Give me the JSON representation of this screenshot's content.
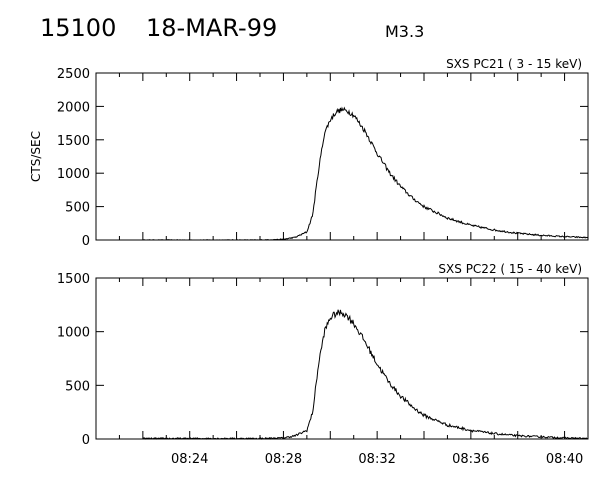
{
  "header": {
    "event_id": "15100",
    "date": "18-MAR-99",
    "flare_class": "M3.3"
  },
  "chart_data": [
    {
      "type": "line",
      "title": "SXS PC21  (  3 - 15 keV)",
      "xlabel": "",
      "ylabel": "CTS/SEC",
      "xlim": [
        "08:20:00",
        "08:41:00"
      ],
      "ylim": [
        0,
        2500
      ],
      "yticks": [
        0,
        500,
        1000,
        1500,
        2000,
        2500
      ],
      "xticks": [
        "08:24",
        "08:28",
        "08:32",
        "08:36",
        "08:40"
      ],
      "x_tick_labels_shown": false,
      "grid": false,
      "series": [
        {
          "x": [
            "08:22:00",
            "08:24:00",
            "08:26:00",
            "08:27:00",
            "08:28:00",
            "08:28:30",
            "08:29:00",
            "08:29:15",
            "08:29:30",
            "08:29:45",
            "08:30:00",
            "08:30:15",
            "08:30:30",
            "08:30:45",
            "08:31:00",
            "08:31:30",
            "08:32:00",
            "08:32:30",
            "08:33:00",
            "08:33:30",
            "08:34:00",
            "08:35:00",
            "08:36:00",
            "08:37:00",
            "08:38:00",
            "08:39:00",
            "08:40:00",
            "08:41:00"
          ],
          "y": [
            0,
            0,
            0,
            0,
            10,
            40,
            120,
            380,
            1050,
            1600,
            1800,
            1920,
            1950,
            1930,
            1870,
            1620,
            1300,
            1020,
            800,
            630,
            500,
            330,
            220,
            150,
            100,
            70,
            50,
            35
          ]
        }
      ]
    },
    {
      "type": "line",
      "title": "SXS PC22  ( 15 - 40 keV)",
      "xlabel": "",
      "ylabel": "",
      "xlim": [
        "08:20:00",
        "08:41:00"
      ],
      "ylim": [
        0,
        1500
      ],
      "yticks": [
        0,
        500,
        1000,
        1500
      ],
      "xticks": [
        "08:24",
        "08:28",
        "08:32",
        "08:36",
        "08:40"
      ],
      "x_tick_labels_shown": true,
      "grid": false,
      "series": [
        {
          "x": [
            "08:22:00",
            "08:24:00",
            "08:26:00",
            "08:27:00",
            "08:28:00",
            "08:28:30",
            "08:29:00",
            "08:29:15",
            "08:29:30",
            "08:29:45",
            "08:30:00",
            "08:30:15",
            "08:30:30",
            "08:30:45",
            "08:31:00",
            "08:31:30",
            "08:32:00",
            "08:32:30",
            "08:33:00",
            "08:33:30",
            "08:34:00",
            "08:35:00",
            "08:36:00",
            "08:37:00",
            "08:38:00",
            "08:39:00",
            "08:40:00",
            "08:41:00"
          ],
          "y": [
            5,
            5,
            5,
            5,
            10,
            30,
            80,
            250,
            700,
            1000,
            1130,
            1170,
            1180,
            1140,
            1080,
            900,
            700,
            530,
            400,
            300,
            220,
            130,
            80,
            50,
            30,
            20,
            10,
            5
          ]
        }
      ]
    }
  ]
}
